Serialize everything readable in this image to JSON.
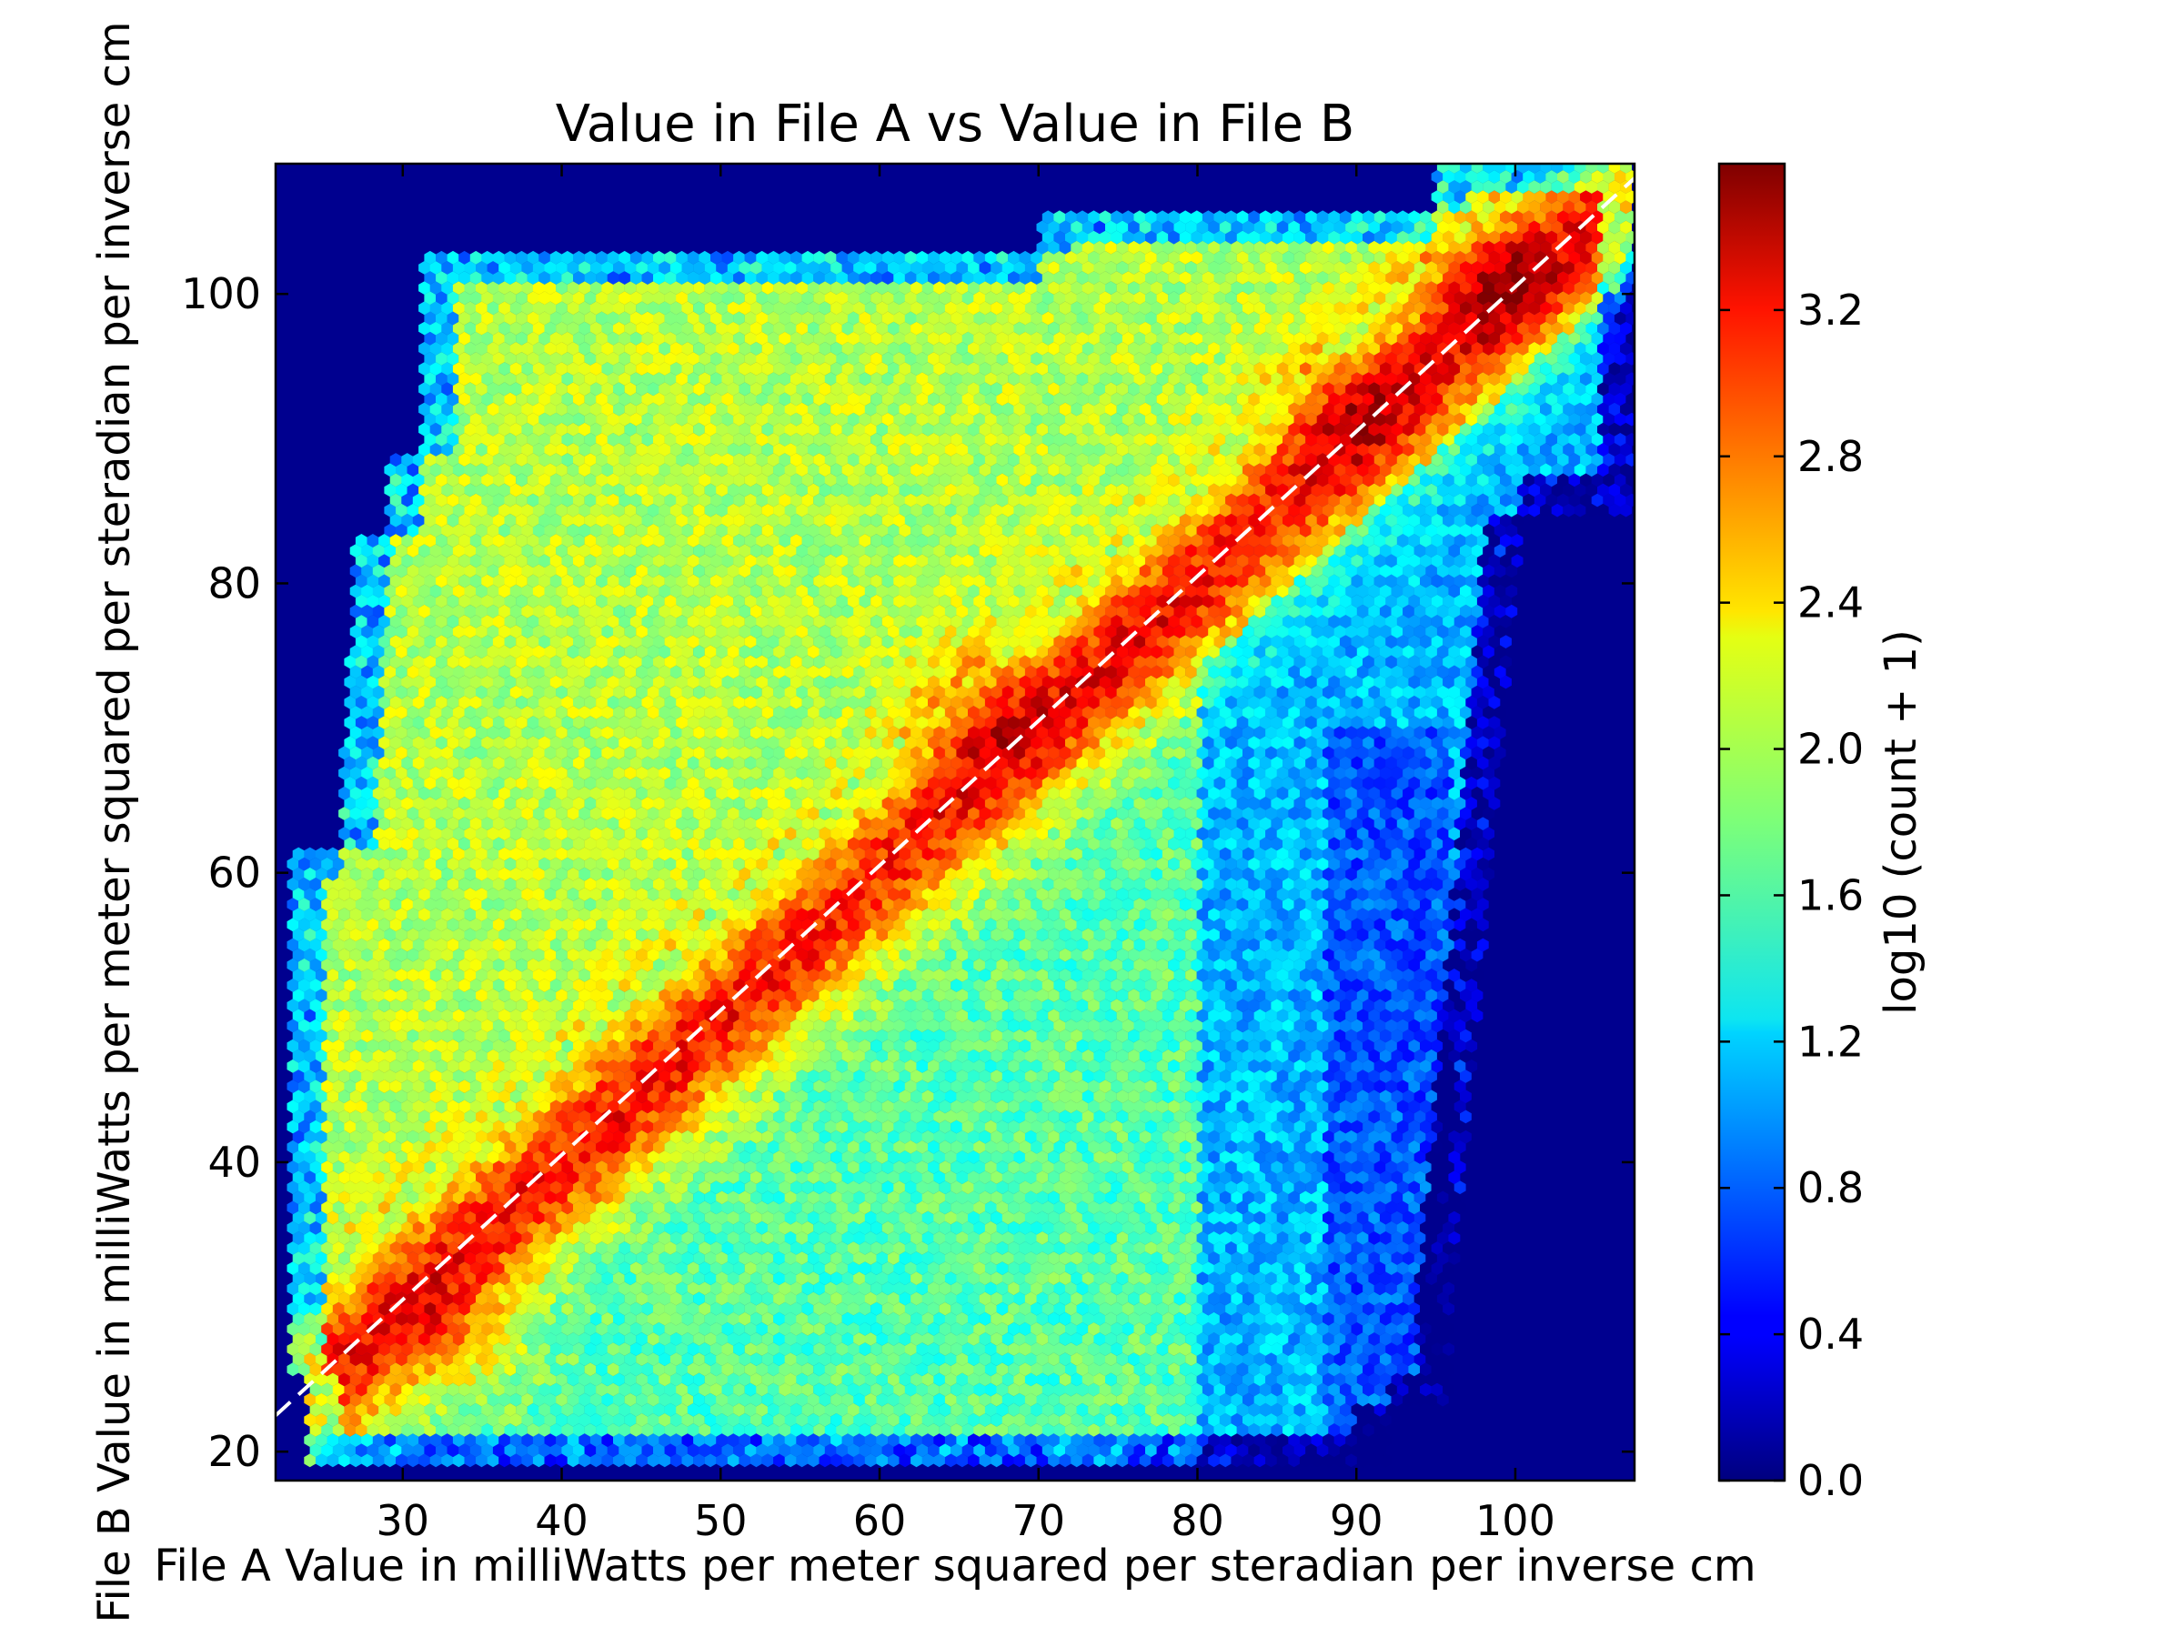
{
  "chart_data": {
    "type": "heatmap",
    "subtype": "hexbin",
    "title": "Value in File A vs Value in File B",
    "xlabel": "File A Value in milliWatts per meter squared per steradian per inverse cm",
    "ylabel": "File B Value in milliWatts per meter squared per steradian per inverse cm",
    "xlim": [
      22,
      107.5
    ],
    "ylim": [
      18,
      109
    ],
    "xticks": [
      30,
      40,
      50,
      60,
      70,
      80,
      90,
      100
    ],
    "yticks": [
      20,
      40,
      60,
      80,
      100
    ],
    "grid": false,
    "background_color": "#00008f",
    "colormap": "jet",
    "colorbar": {
      "label": "log10 (count + 1)",
      "range": [
        0.0,
        3.6
      ],
      "ticks": [
        "0.0",
        "0.4",
        "0.8",
        "1.2",
        "1.6",
        "2.0",
        "2.4",
        "2.8",
        "3.2"
      ]
    },
    "reference_line": {
      "style": "dashed",
      "color": "#ffffff",
      "points": [
        [
          22,
          22.5
        ],
        [
          107.5,
          108
        ]
      ]
    },
    "density_peaks": [
      {
        "x": 34,
        "y": 27,
        "value": 3.4
      },
      {
        "x": 46,
        "y": 46,
        "value": 3.0
      },
      {
        "x": 58,
        "y": 58,
        "value": 2.9
      },
      {
        "x": 66,
        "y": 71.5,
        "value": 3.5
      },
      {
        "x": 76,
        "y": 77,
        "value": 3.1
      },
      {
        "x": 89,
        "y": 92.5,
        "value": 3.5
      },
      {
        "x": 98,
        "y": 101.5,
        "value": 3.6
      }
    ]
  }
}
